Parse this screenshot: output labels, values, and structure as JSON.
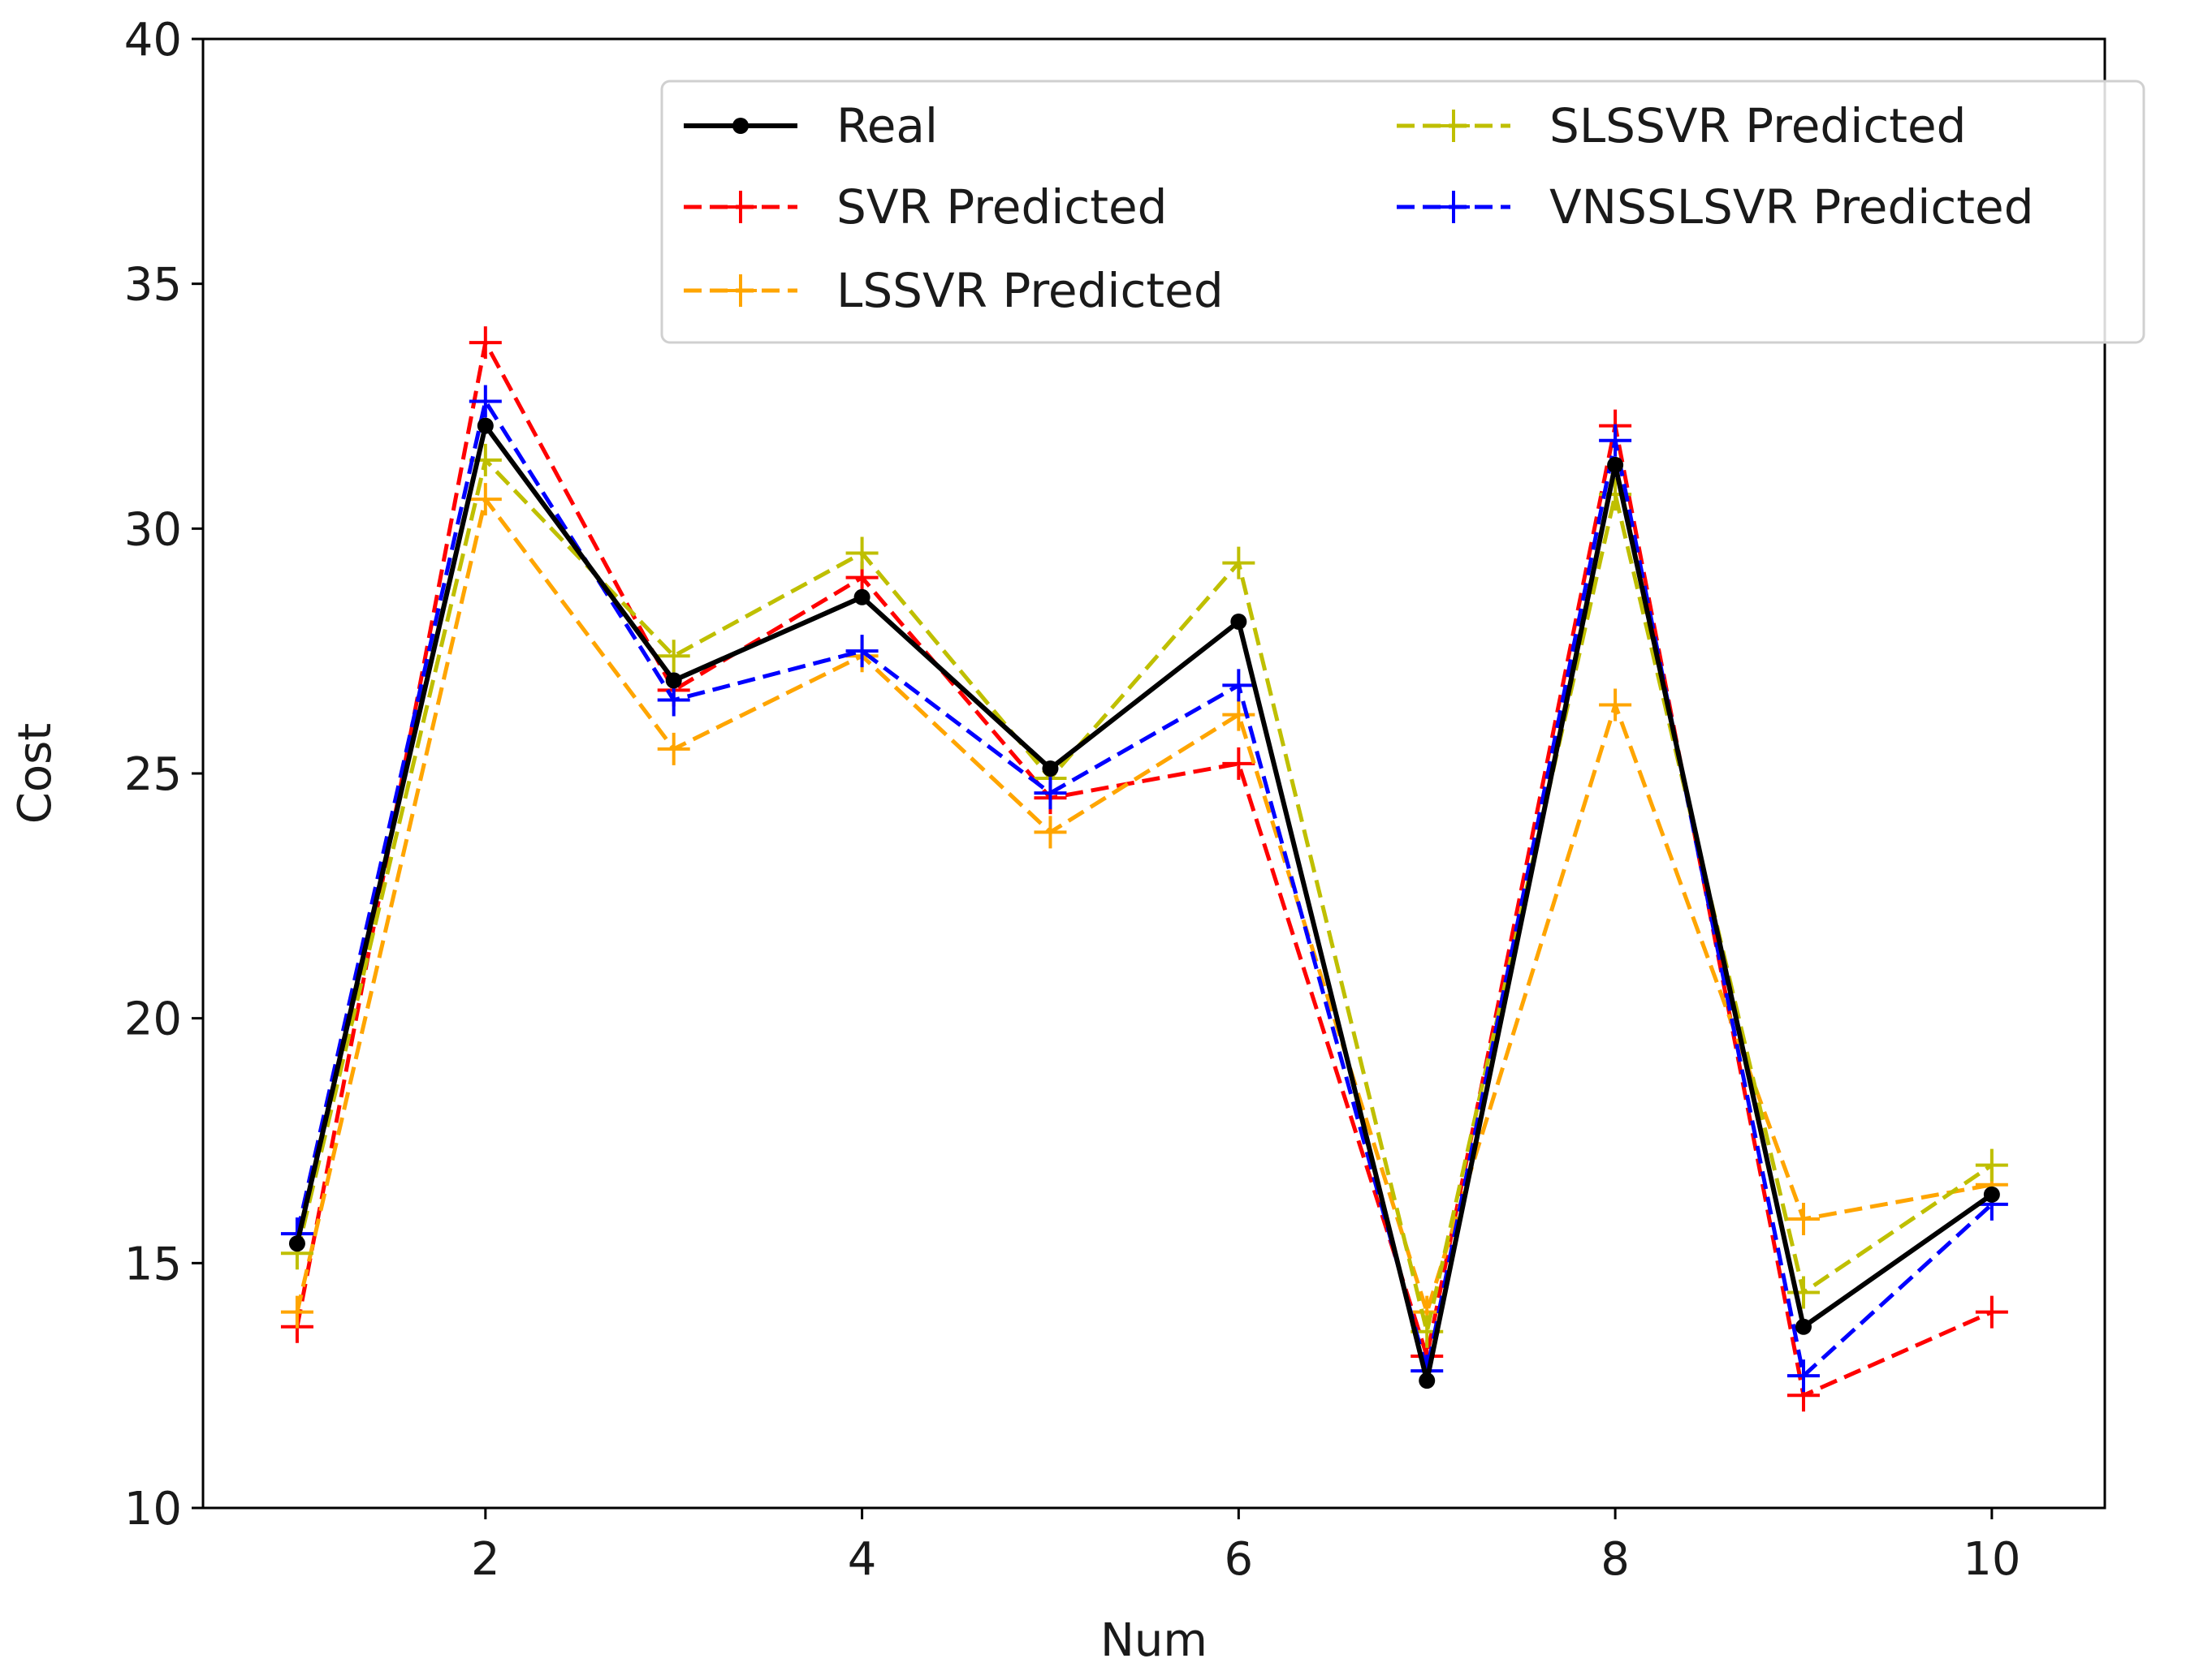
{
  "chart_data": {
    "type": "line",
    "title": "",
    "xlabel": "Num",
    "ylabel": "Cost",
    "x": [
      1,
      2,
      3,
      4,
      5,
      6,
      7,
      8,
      9,
      10
    ],
    "xlim": [
      0.5,
      10.6
    ],
    "ylim": [
      10,
      40
    ],
    "xticks": [
      2,
      4,
      6,
      8,
      10
    ],
    "yticks": [
      10,
      15,
      20,
      25,
      30,
      35,
      40
    ],
    "grid": false,
    "legend": "top-right",
    "series": [
      {
        "name": "SVR Predicted",
        "color": "#ff0000",
        "style": "dashed",
        "marker": "plus",
        "values": [
          13.7,
          33.8,
          26.7,
          29.0,
          24.5,
          25.2,
          13.1,
          32.1,
          12.3,
          14.0
        ]
      },
      {
        "name": "LSSVR Predicted",
        "color": "#ffa500",
        "style": "dashed",
        "marker": "plus",
        "values": [
          14.0,
          30.6,
          25.5,
          27.4,
          23.8,
          26.2,
          14.0,
          26.4,
          15.9,
          16.6
        ]
      },
      {
        "name": "SLSSVR Predicted",
        "color": "#bfbf00",
        "style": "dashed",
        "marker": "plus",
        "values": [
          15.2,
          31.4,
          27.4,
          29.5,
          24.9,
          29.3,
          13.6,
          30.7,
          14.4,
          17.0
        ]
      },
      {
        "name": "VNSSLSVR Predicted",
        "color": "#0000ff",
        "style": "dashed",
        "marker": "plus",
        "values": [
          15.6,
          32.6,
          26.5,
          27.5,
          24.6,
          26.8,
          12.8,
          31.8,
          12.7,
          16.2
        ]
      },
      {
        "name": "Real",
        "color": "#000000",
        "style": "solid",
        "marker": "dot",
        "values": [
          15.4,
          32.1,
          26.9,
          28.6,
          25.1,
          28.1,
          12.6,
          31.3,
          13.7,
          16.4
        ]
      }
    ],
    "legend_order": [
      [
        "Real",
        "SVR Predicted",
        "LSSVR Predicted"
      ],
      [
        "SLSSVR Predicted",
        "VNSSLSVR Predicted"
      ]
    ]
  }
}
